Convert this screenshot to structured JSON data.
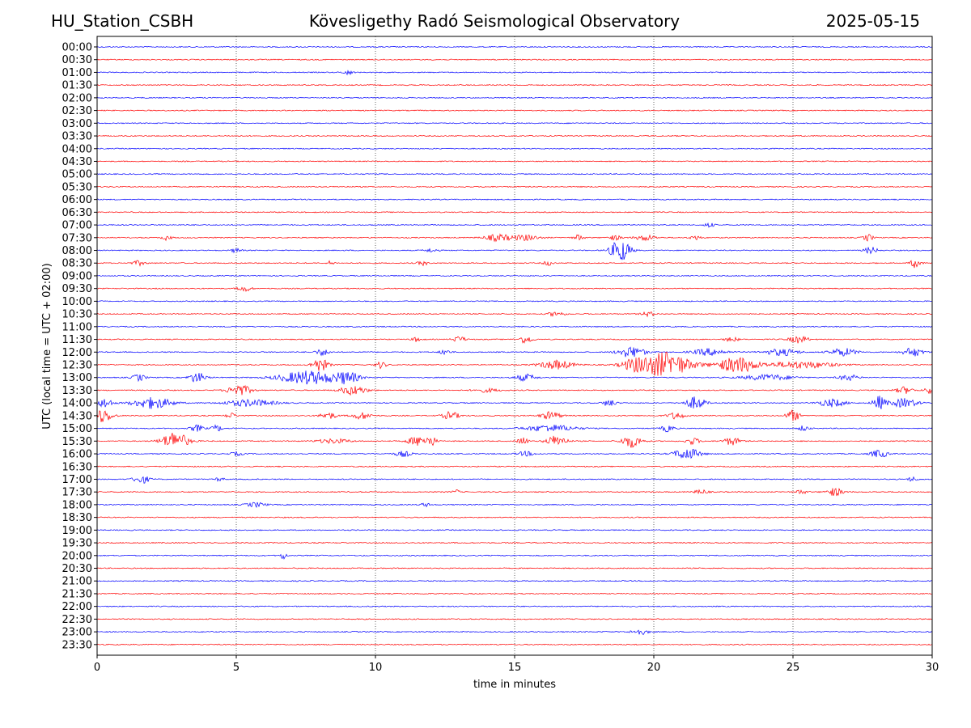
{
  "header": {
    "station": "HU_Station_CSBH",
    "title": "Kövesligethy Radó Seismological Observatory",
    "date": "2025-05-15"
  },
  "chart_data": {
    "type": "line",
    "title": "Kövesligethy Radó Seismological Observatory",
    "xlabel": "time in minutes",
    "ylabel": "UTC (local time = UTC + 02:00)",
    "xlim": [
      0,
      30
    ],
    "x_ticks": [
      "0",
      "5",
      "10",
      "15",
      "20",
      "25",
      "30"
    ],
    "grid": "vertical dotted lines at 5, 10, 15, 20, 25 minutes",
    "colors": {
      "on_hour": "#0000ff",
      "half_hour": "#ff0000"
    },
    "rows": [
      {
        "label": "00:00",
        "events": []
      },
      {
        "label": "00:30",
        "events": []
      },
      {
        "label": "01:00",
        "events": [
          {
            "t": 9.0,
            "amp": 0.2,
            "dur": 0.3
          }
        ]
      },
      {
        "label": "01:30",
        "events": []
      },
      {
        "label": "02:00",
        "events": []
      },
      {
        "label": "02:30",
        "events": []
      },
      {
        "label": "03:00",
        "events": []
      },
      {
        "label": "03:30",
        "events": []
      },
      {
        "label": "04:00",
        "events": []
      },
      {
        "label": "04:30",
        "events": []
      },
      {
        "label": "05:00",
        "events": []
      },
      {
        "label": "05:30",
        "events": []
      },
      {
        "label": "06:00",
        "events": []
      },
      {
        "label": "06:30",
        "events": []
      },
      {
        "label": "07:00",
        "events": [
          {
            "t": 22.0,
            "amp": 0.2,
            "dur": 0.3
          }
        ]
      },
      {
        "label": "07:30",
        "events": [
          {
            "t": 2.5,
            "amp": 0.2,
            "dur": 0.3
          },
          {
            "t": 14.4,
            "amp": 0.3,
            "dur": 0.8
          },
          {
            "t": 15.4,
            "amp": 0.25,
            "dur": 0.8
          },
          {
            "t": 17.3,
            "amp": 0.25,
            "dur": 0.3
          },
          {
            "t": 18.6,
            "amp": 0.2,
            "dur": 0.4
          },
          {
            "t": 19.7,
            "amp": 0.25,
            "dur": 0.6
          },
          {
            "t": 21.5,
            "amp": 0.2,
            "dur": 0.3
          },
          {
            "t": 27.7,
            "amp": 0.3,
            "dur": 0.3
          }
        ]
      },
      {
        "label": "08:00",
        "events": [
          {
            "t": 5.0,
            "amp": 0.2,
            "dur": 0.3
          },
          {
            "t": 12.0,
            "amp": 0.15,
            "dur": 0.4
          },
          {
            "t": 18.8,
            "amp": 1.0,
            "dur": 0.6
          },
          {
            "t": 27.8,
            "amp": 0.3,
            "dur": 0.4
          }
        ]
      },
      {
        "label": "08:30",
        "events": [
          {
            "t": 1.5,
            "amp": 0.2,
            "dur": 0.4
          },
          {
            "t": 8.4,
            "amp": 0.2,
            "dur": 0.2
          },
          {
            "t": 11.7,
            "amp": 0.2,
            "dur": 0.3
          },
          {
            "t": 16.2,
            "amp": 0.2,
            "dur": 0.3
          },
          {
            "t": 29.4,
            "amp": 0.4,
            "dur": 0.3
          }
        ]
      },
      {
        "label": "09:00",
        "events": []
      },
      {
        "label": "09:30",
        "events": [
          {
            "t": 5.3,
            "amp": 0.25,
            "dur": 0.4
          }
        ]
      },
      {
        "label": "10:00",
        "events": []
      },
      {
        "label": "10:30",
        "events": [
          {
            "t": 16.5,
            "amp": 0.2,
            "dur": 0.5
          },
          {
            "t": 19.8,
            "amp": 0.2,
            "dur": 0.4
          }
        ]
      },
      {
        "label": "11:00",
        "events": []
      },
      {
        "label": "11:30",
        "events": [
          {
            "t": 11.5,
            "amp": 0.2,
            "dur": 0.3
          },
          {
            "t": 13.0,
            "amp": 0.25,
            "dur": 0.4
          },
          {
            "t": 15.4,
            "amp": 0.35,
            "dur": 0.4
          },
          {
            "t": 22.8,
            "amp": 0.2,
            "dur": 0.4
          },
          {
            "t": 25.2,
            "amp": 0.3,
            "dur": 0.6
          }
        ]
      },
      {
        "label": "12:00",
        "events": [
          {
            "t": 8.1,
            "amp": 0.3,
            "dur": 0.4
          },
          {
            "t": 12.5,
            "amp": 0.25,
            "dur": 0.3
          },
          {
            "t": 19.2,
            "amp": 0.5,
            "dur": 0.8
          },
          {
            "t": 22.0,
            "amp": 0.3,
            "dur": 1.0
          },
          {
            "t": 24.6,
            "amp": 0.3,
            "dur": 1.0
          },
          {
            "t": 26.8,
            "amp": 0.35,
            "dur": 0.8
          },
          {
            "t": 29.3,
            "amp": 0.4,
            "dur": 0.6
          }
        ]
      },
      {
        "label": "12:30",
        "events": [
          {
            "t": 8.0,
            "amp": 0.6,
            "dur": 0.5
          },
          {
            "t": 10.2,
            "amp": 0.3,
            "dur": 0.3
          },
          {
            "t": 16.5,
            "amp": 0.4,
            "dur": 1.0
          },
          {
            "t": 19.3,
            "amp": 0.4,
            "dur": 0.8
          },
          {
            "t": 20.4,
            "amp": 1.1,
            "dur": 1.6
          },
          {
            "t": 23.0,
            "amp": 0.7,
            "dur": 1.2
          },
          {
            "t": 25.3,
            "amp": 0.3,
            "dur": 2.0
          }
        ]
      },
      {
        "label": "13:00",
        "events": [
          {
            "t": 1.5,
            "amp": 0.3,
            "dur": 0.4
          },
          {
            "t": 3.6,
            "amp": 0.45,
            "dur": 0.5
          },
          {
            "t": 7.6,
            "amp": 0.6,
            "dur": 1.8
          },
          {
            "t": 9.0,
            "amp": 0.5,
            "dur": 0.7
          },
          {
            "t": 15.4,
            "amp": 0.3,
            "dur": 0.6
          },
          {
            "t": 24.1,
            "amp": 0.25,
            "dur": 1.5
          },
          {
            "t": 27.0,
            "amp": 0.25,
            "dur": 0.6
          }
        ]
      },
      {
        "label": "13:30",
        "events": [
          {
            "t": 5.1,
            "amp": 0.5,
            "dur": 0.7
          },
          {
            "t": 9.2,
            "amp": 0.4,
            "dur": 0.8
          },
          {
            "t": 14.0,
            "amp": 0.15,
            "dur": 0.8
          },
          {
            "t": 29.0,
            "amp": 0.3,
            "dur": 0.5
          },
          {
            "t": 29.9,
            "amp": 0.3,
            "dur": 0.3
          }
        ]
      },
      {
        "label": "14:00",
        "events": [
          {
            "t": 0.3,
            "amp": 0.45,
            "dur": 0.4
          },
          {
            "t": 2.0,
            "amp": 0.5,
            "dur": 1.2
          },
          {
            "t": 5.5,
            "amp": 0.3,
            "dur": 1.5
          },
          {
            "t": 18.4,
            "amp": 0.3,
            "dur": 0.4
          },
          {
            "t": 21.5,
            "amp": 0.55,
            "dur": 0.6
          },
          {
            "t": 26.4,
            "amp": 0.35,
            "dur": 0.8
          },
          {
            "t": 28.1,
            "amp": 0.6,
            "dur": 0.4
          },
          {
            "t": 29.0,
            "amp": 0.4,
            "dur": 0.8
          }
        ]
      },
      {
        "label": "14:30",
        "events": [
          {
            "t": 0.2,
            "amp": 0.6,
            "dur": 0.6
          },
          {
            "t": 4.8,
            "amp": 0.25,
            "dur": 0.3
          },
          {
            "t": 8.3,
            "amp": 0.3,
            "dur": 0.5
          },
          {
            "t": 9.5,
            "amp": 0.3,
            "dur": 0.6
          },
          {
            "t": 12.7,
            "amp": 0.35,
            "dur": 0.5
          },
          {
            "t": 16.3,
            "amp": 0.35,
            "dur": 0.6
          },
          {
            "t": 20.8,
            "amp": 0.3,
            "dur": 0.5
          },
          {
            "t": 25.0,
            "amp": 0.5,
            "dur": 0.4
          }
        ]
      },
      {
        "label": "15:00",
        "events": [
          {
            "t": 3.6,
            "amp": 0.3,
            "dur": 0.4
          },
          {
            "t": 4.3,
            "amp": 0.3,
            "dur": 0.3
          },
          {
            "t": 16.3,
            "amp": 0.3,
            "dur": 1.5
          },
          {
            "t": 20.5,
            "amp": 0.3,
            "dur": 0.4
          },
          {
            "t": 25.4,
            "amp": 0.25,
            "dur": 0.3
          }
        ]
      },
      {
        "label": "15:30",
        "events": [
          {
            "t": 2.8,
            "amp": 0.8,
            "dur": 0.8
          },
          {
            "t": 8.5,
            "amp": 0.2,
            "dur": 1.0
          },
          {
            "t": 11.5,
            "amp": 0.4,
            "dur": 0.6
          },
          {
            "t": 12.0,
            "amp": 0.45,
            "dur": 0.3
          },
          {
            "t": 15.3,
            "amp": 0.35,
            "dur": 0.3
          },
          {
            "t": 16.5,
            "amp": 0.5,
            "dur": 0.6
          },
          {
            "t": 19.2,
            "amp": 0.55,
            "dur": 0.6
          },
          {
            "t": 21.4,
            "amp": 0.3,
            "dur": 0.4
          },
          {
            "t": 22.8,
            "amp": 0.35,
            "dur": 0.5
          }
        ]
      },
      {
        "label": "16:00",
        "events": [
          {
            "t": 5.0,
            "amp": 0.15,
            "dur": 0.4
          },
          {
            "t": 11.0,
            "amp": 0.25,
            "dur": 0.5
          },
          {
            "t": 15.4,
            "amp": 0.2,
            "dur": 0.5
          },
          {
            "t": 21.2,
            "amp": 0.5,
            "dur": 0.8
          },
          {
            "t": 28.1,
            "amp": 0.35,
            "dur": 0.5
          }
        ]
      },
      {
        "label": "16:30",
        "events": []
      },
      {
        "label": "17:00",
        "events": [
          {
            "t": 1.6,
            "amp": 0.35,
            "dur": 0.5
          },
          {
            "t": 4.4,
            "amp": 0.15,
            "dur": 0.3
          },
          {
            "t": 29.3,
            "amp": 0.2,
            "dur": 0.3
          }
        ]
      },
      {
        "label": "17:30",
        "events": [
          {
            "t": 12.9,
            "amp": 0.2,
            "dur": 0.2
          },
          {
            "t": 21.7,
            "amp": 0.2,
            "dur": 0.4
          },
          {
            "t": 25.3,
            "amp": 0.2,
            "dur": 0.3
          },
          {
            "t": 26.5,
            "amp": 0.35,
            "dur": 0.5
          }
        ]
      },
      {
        "label": "18:00",
        "events": [
          {
            "t": 5.7,
            "amp": 0.2,
            "dur": 0.6
          },
          {
            "t": 11.8,
            "amp": 0.15,
            "dur": 0.3
          }
        ]
      },
      {
        "label": "18:30",
        "events": []
      },
      {
        "label": "19:00",
        "events": []
      },
      {
        "label": "19:30",
        "events": []
      },
      {
        "label": "20:00",
        "events": [
          {
            "t": 6.7,
            "amp": 0.5,
            "dur": 0.15
          }
        ]
      },
      {
        "label": "20:30",
        "events": []
      },
      {
        "label": "21:00",
        "events": []
      },
      {
        "label": "21:30",
        "events": []
      },
      {
        "label": "22:00",
        "events": []
      },
      {
        "label": "22:30",
        "events": []
      },
      {
        "label": "23:00",
        "events": [
          {
            "t": 19.5,
            "amp": 0.25,
            "dur": 0.5
          }
        ]
      },
      {
        "label": "23:30",
        "events": []
      }
    ]
  }
}
